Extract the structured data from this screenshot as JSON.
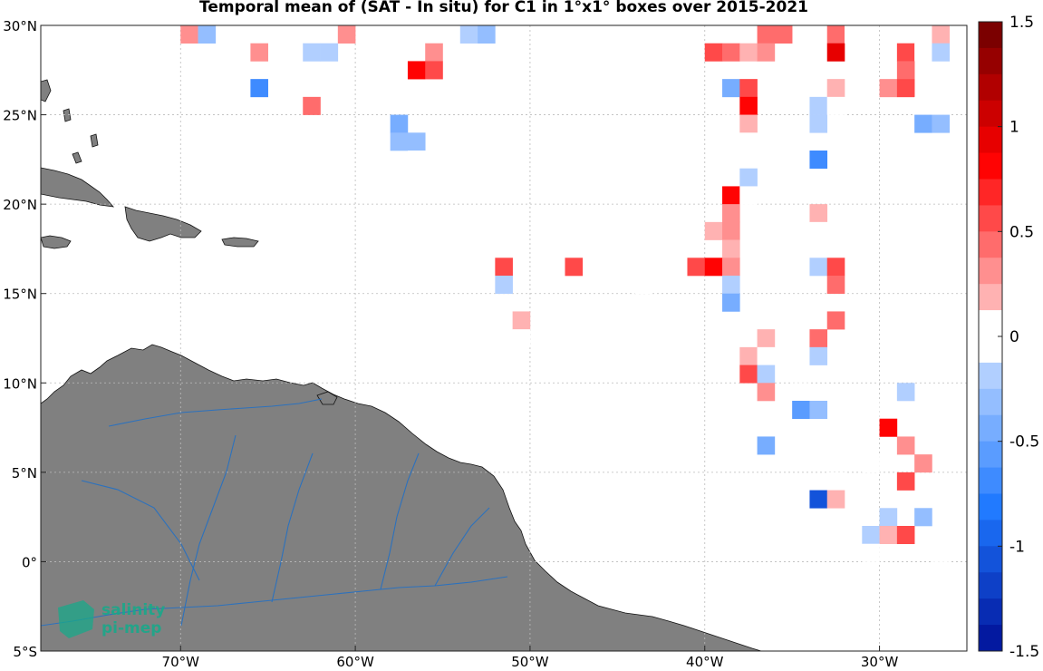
{
  "chart_data": {
    "type": "heatmap",
    "title": "Temporal mean of (SAT - In situ) for C1 in 1°x1° boxes over 2015-2021",
    "xlim": [
      -78,
      -25
    ],
    "ylim": [
      -5,
      30
    ],
    "x_ticks": [
      -70,
      -60,
      -50,
      -40,
      -30
    ],
    "x_tick_labels": [
      "70°W",
      "60°W",
      "50°W",
      "40°W",
      "30°W"
    ],
    "y_ticks": [
      -5,
      0,
      5,
      10,
      15,
      20,
      25,
      30
    ],
    "y_tick_labels": [
      "5°S",
      "0°",
      "5°N",
      "10°N",
      "15°N",
      "20°N",
      "25°N",
      "30°N"
    ],
    "grid": true,
    "colorbar": {
      "range": [
        -1.5,
        1.5
      ],
      "ticks": [
        1.5,
        1,
        0.5,
        0,
        -0.5,
        -1,
        -1.5
      ],
      "tick_labels": [
        "1.5",
        "1",
        "0.5",
        "0",
        "-0.5",
        "-1",
        "-1.5"
      ],
      "colormap": "blue-white-red",
      "negative_color": "#0015a0",
      "positive_color": "#6e0000"
    },
    "land_color": "#808080",
    "river_color": "#1e6fc8",
    "cells": [
      {
        "lon": -69.5,
        "lat": 29.5,
        "value": 0.3
      },
      {
        "lon": -68.5,
        "lat": 29.5,
        "value": -0.3
      },
      {
        "lon": -61.5,
        "lat": 29.5,
        "value": -0.1
      },
      {
        "lon": -60.5,
        "lat": 29.5,
        "value": 0.3
      },
      {
        "lon": -53.5,
        "lat": 29.5,
        "value": -0.2
      },
      {
        "lon": -52.5,
        "lat": 29.5,
        "value": -0.3
      },
      {
        "lon": -38.5,
        "lat": 29.5,
        "value": 0.1
      },
      {
        "lon": -36.5,
        "lat": 29.5,
        "value": 0.4
      },
      {
        "lon": -35.5,
        "lat": 29.5,
        "value": 0.4
      },
      {
        "lon": -32.5,
        "lat": 29.5,
        "value": 0.4
      },
      {
        "lon": -31.5,
        "lat": 29.5,
        "value": 0.1
      },
      {
        "lon": -26.5,
        "lat": 29.5,
        "value": 0.2
      },
      {
        "lon": -65.5,
        "lat": 28.5,
        "value": 0.3
      },
      {
        "lon": -62.5,
        "lat": 28.5,
        "value": -0.2
      },
      {
        "lon": -61.5,
        "lat": 28.5,
        "value": -0.2
      },
      {
        "lon": -55.5,
        "lat": 28.5,
        "value": 0.3
      },
      {
        "lon": -39.5,
        "lat": 28.5,
        "value": 0.5
      },
      {
        "lon": -38.5,
        "lat": 28.5,
        "value": 0.4
      },
      {
        "lon": -37.5,
        "lat": 28.5,
        "value": 0.2
      },
      {
        "lon": -36.5,
        "lat": 28.5,
        "value": 0.3
      },
      {
        "lon": -32.5,
        "lat": 28.5,
        "value": 0.9
      },
      {
        "lon": -28.5,
        "lat": 28.5,
        "value": 0.5
      },
      {
        "lon": -27.5,
        "lat": 28.5,
        "value": 0.1
      },
      {
        "lon": -26.5,
        "lat": 28.5,
        "value": -0.2
      },
      {
        "lon": -56.5,
        "lat": 27.5,
        "value": 0.8
      },
      {
        "lon": -55.5,
        "lat": 27.5,
        "value": 0.6
      },
      {
        "lon": -28.5,
        "lat": 27.5,
        "value": 0.4
      },
      {
        "lon": -65.5,
        "lat": 26.5,
        "value": -0.7
      },
      {
        "lon": -38.5,
        "lat": 26.5,
        "value": -0.4
      },
      {
        "lon": -37.5,
        "lat": 26.5,
        "value": 0.5
      },
      {
        "lon": -32.5,
        "lat": 26.5,
        "value": 0.2
      },
      {
        "lon": -29.5,
        "lat": 26.5,
        "value": 0.3
      },
      {
        "lon": -28.5,
        "lat": 26.5,
        "value": 0.5
      },
      {
        "lon": -62.5,
        "lat": 25.5,
        "value": 0.4
      },
      {
        "lon": -37.5,
        "lat": 25.5,
        "value": 0.8
      },
      {
        "lon": -33.5,
        "lat": 25.5,
        "value": -0.2
      },
      {
        "lon": -32.5,
        "lat": 25.5,
        "value": -0.1
      },
      {
        "lon": -27.5,
        "lat": 25.5,
        "value": -0.1
      },
      {
        "lon": -26.5,
        "lat": 25.5,
        "value": -0.1
      },
      {
        "lon": -57.5,
        "lat": 24.5,
        "value": -0.4
      },
      {
        "lon": -38.5,
        "lat": 24.5,
        "value": 0.1
      },
      {
        "lon": -37.5,
        "lat": 24.5,
        "value": 0.2
      },
      {
        "lon": -33.5,
        "lat": 24.5,
        "value": -0.2
      },
      {
        "lon": -27.5,
        "lat": 24.5,
        "value": -0.5
      },
      {
        "lon": -26.5,
        "lat": 24.5,
        "value": -0.3
      },
      {
        "lon": -57.5,
        "lat": 23.5,
        "value": -0.3
      },
      {
        "lon": -56.5,
        "lat": 23.5,
        "value": -0.3
      },
      {
        "lon": -37.5,
        "lat": 23.5,
        "value": 0.1
      },
      {
        "lon": -56.5,
        "lat": 22.5,
        "value": 0.1
      },
      {
        "lon": -33.5,
        "lat": 22.5,
        "value": -0.7
      },
      {
        "lon": -37.5,
        "lat": 21.5,
        "value": -0.2
      },
      {
        "lon": -38.5,
        "lat": 20.5,
        "value": 0.8
      },
      {
        "lon": -37.5,
        "lat": 20.5,
        "value": -0.1
      },
      {
        "lon": -38.5,
        "lat": 19.5,
        "value": 0.3
      },
      {
        "lon": -33.5,
        "lat": 19.5,
        "value": 0.2
      },
      {
        "lon": -39.5,
        "lat": 18.5,
        "value": 0.2
      },
      {
        "lon": -38.5,
        "lat": 18.5,
        "value": 0.3
      },
      {
        "lon": -33.5,
        "lat": 18.5,
        "value": 0.1
      },
      {
        "lon": -38.5,
        "lat": 17.5,
        "value": 0.2
      },
      {
        "lon": -51.5,
        "lat": 16.5,
        "value": 0.6
      },
      {
        "lon": -47.5,
        "lat": 16.5,
        "value": 0.6
      },
      {
        "lon": -40.5,
        "lat": 16.5,
        "value": 0.5
      },
      {
        "lon": -39.5,
        "lat": 16.5,
        "value": 0.8
      },
      {
        "lon": -38.5,
        "lat": 16.5,
        "value": 0.3
      },
      {
        "lon": -33.5,
        "lat": 16.5,
        "value": -0.2
      },
      {
        "lon": -32.5,
        "lat": 16.5,
        "value": 0.5
      },
      {
        "lon": -51.5,
        "lat": 15.5,
        "value": -0.2
      },
      {
        "lon": -43.5,
        "lat": 15.5,
        "value": 0.1
      },
      {
        "lon": -38.5,
        "lat": 15.5,
        "value": -0.2
      },
      {
        "lon": -32.5,
        "lat": 15.5,
        "value": 0.4
      },
      {
        "lon": -38.5,
        "lat": 14.5,
        "value": -0.4
      },
      {
        "lon": -51.5,
        "lat": 13.5,
        "value": -0.1
      },
      {
        "lon": -50.5,
        "lat": 13.5,
        "value": 0.2
      },
      {
        "lon": -32.5,
        "lat": 13.5,
        "value": 0.4
      },
      {
        "lon": -50.5,
        "lat": 12.5,
        "value": -0.1
      },
      {
        "lon": -38.5,
        "lat": 12.5,
        "value": 0.1
      },
      {
        "lon": -36.5,
        "lat": 12.5,
        "value": 0.2
      },
      {
        "lon": -33.5,
        "lat": 12.5,
        "value": 0.4
      },
      {
        "lon": -42.5,
        "lat": 11.5,
        "value": 0.1
      },
      {
        "lon": -37.5,
        "lat": 11.5,
        "value": 0.2
      },
      {
        "lon": -36.5,
        "lat": 11.5,
        "value": -0.1
      },
      {
        "lon": -33.5,
        "lat": 11.5,
        "value": -0.2
      },
      {
        "lon": -37.5,
        "lat": 10.5,
        "value": 0.5
      },
      {
        "lon": -36.5,
        "lat": 10.5,
        "value": -0.2
      },
      {
        "lon": -36.5,
        "lat": 9.5,
        "value": 0.3
      },
      {
        "lon": -34.5,
        "lat": 9.5,
        "value": -0.1
      },
      {
        "lon": -28.5,
        "lat": 9.5,
        "value": -0.2
      },
      {
        "lon": -34.5,
        "lat": 8.5,
        "value": -0.6
      },
      {
        "lon": -33.5,
        "lat": 8.5,
        "value": -0.3
      },
      {
        "lon": -29.5,
        "lat": 8.5,
        "value": -0.1
      },
      {
        "lon": -29.5,
        "lat": 7.5,
        "value": 0.8
      },
      {
        "lon": -36.5,
        "lat": 6.5,
        "value": -0.4
      },
      {
        "lon": -28.5,
        "lat": 6.5,
        "value": 0.3
      },
      {
        "lon": -30.5,
        "lat": 5.5,
        "value": 0.1
      },
      {
        "lon": -27.5,
        "lat": 5.5,
        "value": 0.3
      },
      {
        "lon": -32.5,
        "lat": 4.5,
        "value": -0.1
      },
      {
        "lon": -28.5,
        "lat": 4.5,
        "value": 0.5
      },
      {
        "lon": -33.5,
        "lat": 3.5,
        "value": -1.1
      },
      {
        "lon": -32.5,
        "lat": 3.5,
        "value": 0.2
      },
      {
        "lon": -29.5,
        "lat": 2.5,
        "value": -0.2
      },
      {
        "lon": -27.5,
        "lat": 2.5,
        "value": -0.3
      },
      {
        "lon": -30.5,
        "lat": 1.5,
        "value": -0.2
      },
      {
        "lon": -29.5,
        "lat": 1.5,
        "value": 0.2
      },
      {
        "lon": -28.5,
        "lat": 1.5,
        "value": 0.5
      },
      {
        "lon": -30.5,
        "lat": 0.5,
        "value": 0.1
      },
      {
        "lon": -26.5,
        "lat": 0.5,
        "value": 0.1
      },
      {
        "lon": -26.5,
        "lat": -1.5,
        "value": -0.1
      },
      {
        "lon": -26.5,
        "lat": -2.5,
        "value": -0.1
      }
    ]
  },
  "logo": {
    "line1": "salinity",
    "line2": "pi-mep",
    "color": "#1aa88a"
  }
}
